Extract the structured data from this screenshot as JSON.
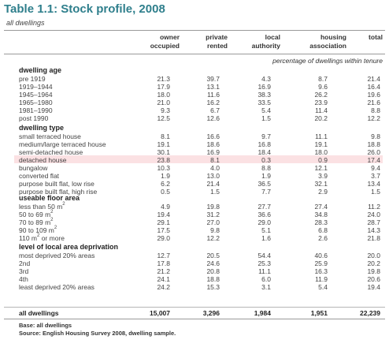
{
  "title": "Table 1.1: Stock profile, 2008",
  "subtitle": "all dwellings",
  "columns": [
    {
      "line1": "owner",
      "line2": "occupied"
    },
    {
      "line1": "private",
      "line2": "rented"
    },
    {
      "line1": "local",
      "line2": "authority"
    },
    {
      "line1": "housing",
      "line2": "association"
    },
    {
      "line1": "",
      "line2": "total"
    }
  ],
  "unit_note": "percentage of dwellings within tenure",
  "colors": {
    "title": "#2f7f8c",
    "highlight": "#fbe1e3"
  },
  "sections": [
    {
      "heading": "dwelling age",
      "rows": [
        {
          "label": "pre 1919",
          "values": [
            "21.3",
            "39.7",
            "4.3",
            "8.7",
            "21.4"
          ]
        },
        {
          "label": "1919–1944",
          "values": [
            "17.9",
            "13.1",
            "16.9",
            "9.6",
            "16.4"
          ]
        },
        {
          "label": "1945–1964",
          "values": [
            "18.0",
            "11.6",
            "38.3",
            "26.2",
            "19.6"
          ]
        },
        {
          "label": "1965–1980",
          "values": [
            "21.0",
            "16.2",
            "33.5",
            "23.9",
            "21.6"
          ]
        },
        {
          "label": "1981–1990",
          "values": [
            "9.3",
            "6.7",
            "5.4",
            "11.4",
            "8.8"
          ]
        },
        {
          "label": "post 1990",
          "values": [
            "12.5",
            "12.6",
            "1.5",
            "20.2",
            "12.2"
          ]
        }
      ]
    },
    {
      "heading": "dwelling type",
      "rows": [
        {
          "label": "small terraced house",
          "values": [
            "8.1",
            "16.6",
            "9.7",
            "11.1",
            "9.8"
          ]
        },
        {
          "label": "medium/large terraced house",
          "values": [
            "19.1",
            "18.6",
            "16.8",
            "19.1",
            "18.8"
          ]
        },
        {
          "label": "semi-detached house",
          "values": [
            "30.1",
            "16.9",
            "18.4",
            "18.0",
            "26.0"
          ]
        },
        {
          "label": "detached house",
          "values": [
            "23.8",
            "8.1",
            "0.3",
            "0.9",
            "17.4"
          ],
          "highlight": true
        },
        {
          "label": "bungalow",
          "values": [
            "10.3",
            "4.0",
            "8.8",
            "12.1",
            "9.4"
          ]
        },
        {
          "label": "converted flat",
          "values": [
            "1.9",
            "13.0",
            "1.9",
            "3.9",
            "3.7"
          ]
        },
        {
          "label": "purpose built flat, low rise",
          "values": [
            "6.2",
            "21.4",
            "36.5",
            "32.1",
            "13.4"
          ]
        },
        {
          "label": "purpose built flat, high rise",
          "values": [
            "0.5",
            "1.5",
            "7.7",
            "2.9",
            "1.5"
          ]
        }
      ]
    },
    {
      "heading": "useable floor area",
      "rows": [
        {
          "label": "less than 50 m",
          "sup": "2",
          "values": [
            "4.9",
            "19.8",
            "27.7",
            "27.4",
            "11.2"
          ]
        },
        {
          "label": "50 to 69 m",
          "sup": "2",
          "values": [
            "19.4",
            "31.2",
            "36.6",
            "34.8",
            "24.0"
          ]
        },
        {
          "label": "70 to 89 m",
          "sup": "2",
          "values": [
            "29.1",
            "27.0",
            "29.0",
            "28.3",
            "28.7"
          ]
        },
        {
          "label": "90 to 109 m",
          "sup": "2",
          "values": [
            "17.5",
            "9.8",
            "5.1",
            "6.8",
            "14.3"
          ]
        },
        {
          "label": "110 m",
          "sup": "2",
          "label_after": " or more",
          "values": [
            "29.0",
            "12.2",
            "1.6",
            "2.6",
            "21.8"
          ]
        }
      ]
    },
    {
      "heading": "level of local area deprivation",
      "rows": [
        {
          "label": "most deprived 20% areas",
          "values": [
            "12.7",
            "20.5",
            "54.4",
            "40.6",
            "20.0"
          ]
        },
        {
          "label": "2nd",
          "values": [
            "17.8",
            "24.6",
            "25.3",
            "25.9",
            "20.2"
          ]
        },
        {
          "label": "3rd",
          "values": [
            "21.2",
            "20.8",
            "11.1",
            "16.3",
            "19.8"
          ]
        },
        {
          "label": "4th",
          "values": [
            "24.1",
            "18.8",
            "6.0",
            "11.9",
            "20.6"
          ]
        },
        {
          "label": "least deprived 20% areas",
          "values": [
            "24.2",
            "15.3",
            "3.1",
            "5.4",
            "19.4"
          ]
        }
      ]
    }
  ],
  "total": {
    "label": "all dwellings",
    "values": [
      "15,007",
      "3,296",
      "1,984",
      "1,951",
      "22,239"
    ]
  },
  "notes": [
    "Base: all dwellings",
    "Source: English Housing Survey 2008, dwelling sample."
  ]
}
